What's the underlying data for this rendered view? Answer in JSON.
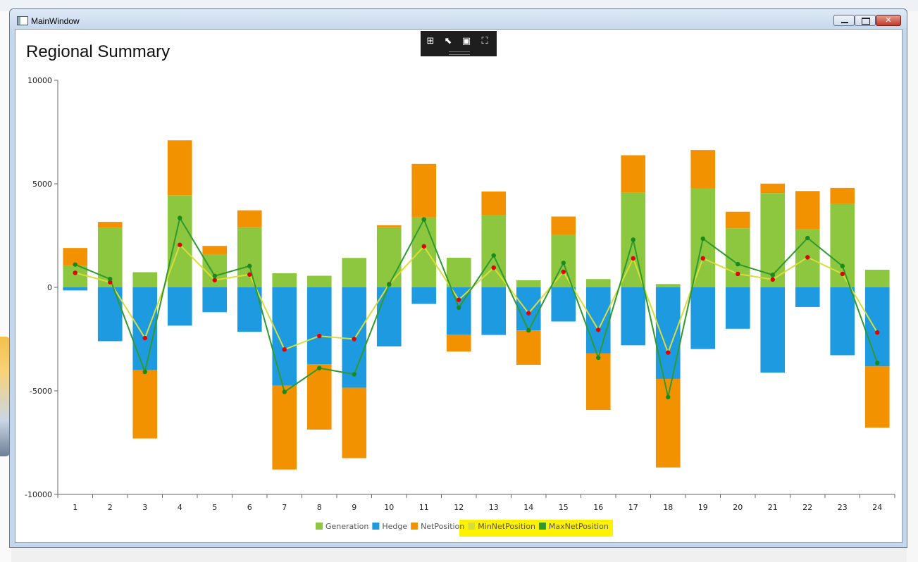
{
  "window": {
    "title": "MainWindow"
  },
  "page": {
    "title": "Regional Summary"
  },
  "chart_data": {
    "type": "bar",
    "stacked": true,
    "title": "Regional Summary",
    "categories": [
      "1",
      "2",
      "3",
      "4",
      "5",
      "6",
      "7",
      "8",
      "9",
      "10",
      "11",
      "12",
      "13",
      "14",
      "15",
      "16",
      "17",
      "18",
      "19",
      "20",
      "21",
      "22",
      "23",
      "24"
    ],
    "ylim": [
      -10000,
      10000
    ],
    "yticks": [
      "10000",
      "5000",
      "0",
      "-5000",
      "-10000"
    ],
    "grid": false,
    "legend_position": "bottom",
    "series": [
      {
        "name": "Generation",
        "kind": "bar",
        "color": "#8dc63f",
        "values": [
          1050,
          2880,
          730,
          4450,
          1600,
          2900,
          680,
          560,
          1420,
          2900,
          3380,
          1430,
          3480,
          340,
          2520,
          400,
          4580,
          160,
          4780,
          2850,
          4550,
          2800,
          4020,
          850
        ]
      },
      {
        "name": "Hedge",
        "kind": "bar",
        "color": "#1e9be0",
        "values": [
          -150,
          -2600,
          -4000,
          -1850,
          -1200,
          -2150,
          -4750,
          -3720,
          -4850,
          -2850,
          -800,
          -2280,
          -2300,
          -2080,
          -1650,
          -3180,
          -2800,
          -4420,
          -2980,
          -2000,
          -4120,
          -950,
          -3280,
          -3820
        ]
      },
      {
        "name": "NetPosition",
        "kind": "bar",
        "color": "#f39200",
        "values": [
          850,
          280,
          -3300,
          2650,
          400,
          820,
          -4050,
          -3150,
          -3400,
          100,
          2580,
          -820,
          1150,
          -1660,
          900,
          -2740,
          1800,
          -4280,
          1850,
          800,
          460,
          1850,
          780,
          -2960
        ]
      },
      {
        "name": "MinNetPosition",
        "kind": "line",
        "color": "#d7dd3a",
        "marker_color": "#e00000",
        "values": [
          700,
          250,
          -2450,
          2050,
          350,
          620,
          -3000,
          -2350,
          -2500,
          150,
          1980,
          -600,
          950,
          -1250,
          750,
          -2050,
          1400,
          -3150,
          1400,
          650,
          380,
          1450,
          650,
          -2180
        ]
      },
      {
        "name": "MaxNetPosition",
        "kind": "line",
        "color": "#2e9a2e",
        "marker_color": "#1a8a1a",
        "values": [
          1100,
          400,
          -4080,
          3350,
          550,
          1030,
          -5050,
          -3900,
          -4200,
          130,
          3280,
          -980,
          1540,
          -2080,
          1180,
          -3400,
          2300,
          -5300,
          2350,
          1120,
          600,
          2380,
          1030,
          -3650
        ]
      }
    ]
  }
}
